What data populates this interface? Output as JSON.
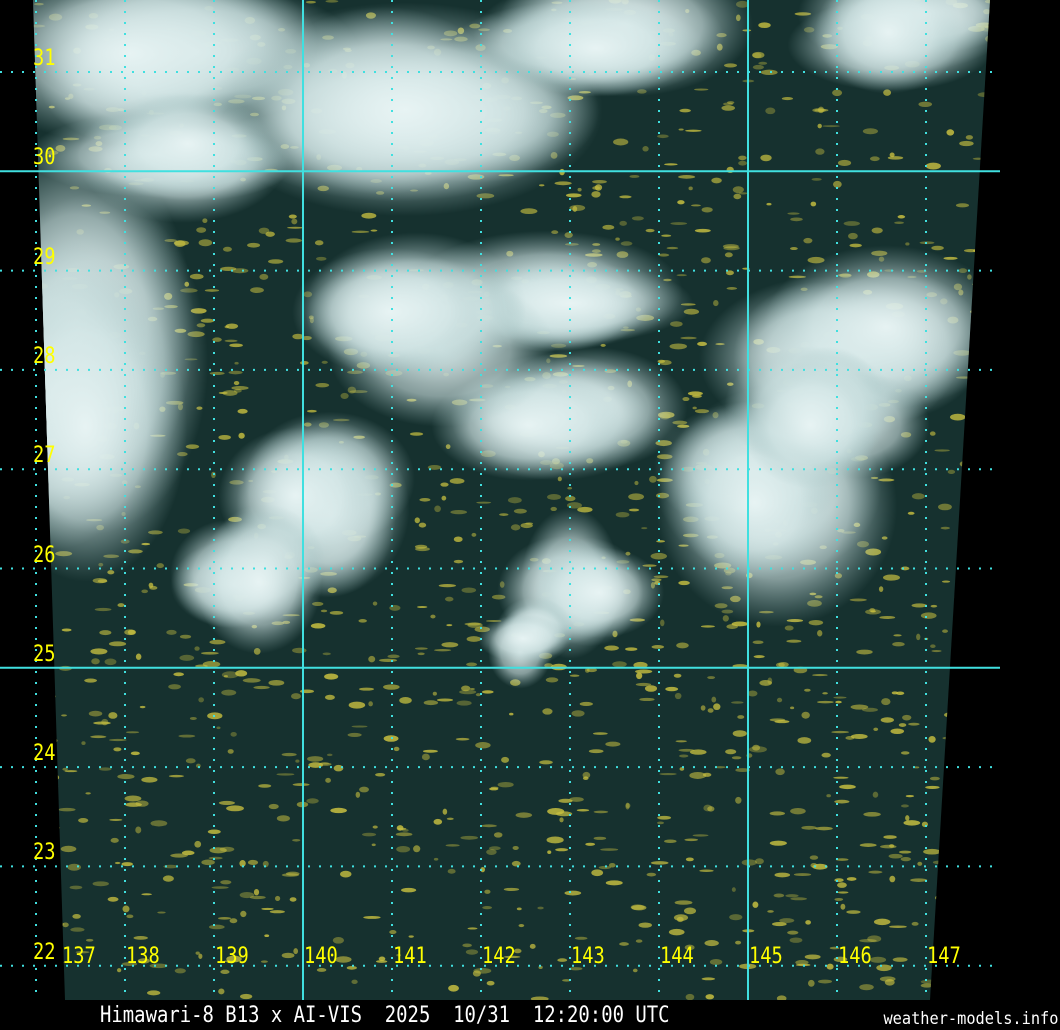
{
  "caption": "Himawari-8 B13 x AI-VIS  2025  10/31  12:20:00 UTC",
  "credit": "weather-models.info",
  "latitudes": [
    "31",
    "30",
    "29",
    "28",
    "27",
    "26",
    "25",
    "24",
    "23",
    "22"
  ],
  "longitudes": [
    "137",
    "138",
    "139",
    "140",
    "141",
    "142",
    "143",
    "144",
    "145",
    "146",
    "147"
  ],
  "major_latitudes": [
    "30",
    "25"
  ],
  "major_longitudes": [
    "140",
    "145"
  ],
  "colors": {
    "grid": "#40e0e0",
    "labels": "#ffff00",
    "ocean": "#16312f",
    "cloud": "#e8f4f4",
    "low_cloud": "#c8c040"
  }
}
